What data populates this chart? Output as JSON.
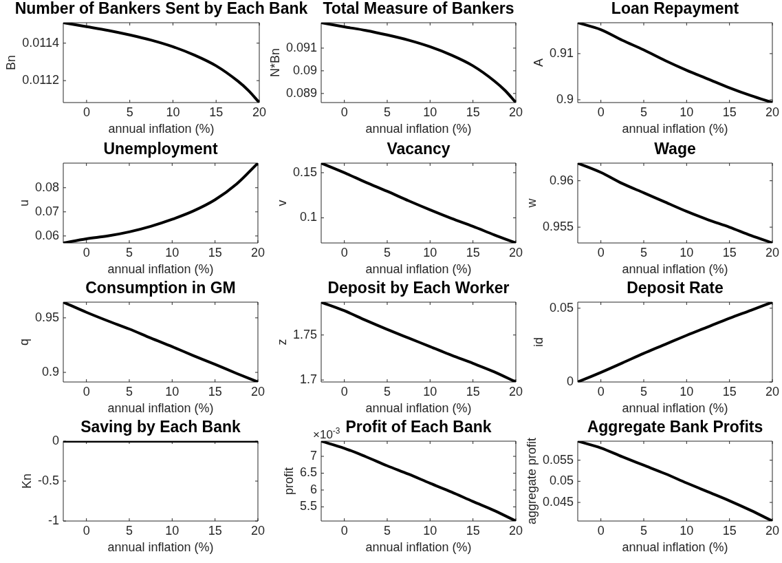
{
  "chart_data": [
    {
      "type": "line",
      "title": "Number of Bankers Sent by Each Bank",
      "xlabel": "annual inflation (%)",
      "ylabel": "Bn",
      "x": [
        -2.7,
        0,
        2.5,
        5,
        7.5,
        10,
        12.5,
        15,
        17.5,
        18.75,
        20
      ],
      "values": [
        0.011509,
        0.011488,
        0.011468,
        0.011444,
        0.011416,
        0.011381,
        0.011336,
        0.011279,
        0.011198,
        0.011147,
        0.011083
      ],
      "color": "#000000",
      "xlim": [
        -2.7,
        20
      ],
      "xticks": [
        0,
        5,
        10,
        15,
        20
      ],
      "ylim": [
        0.011083,
        0.011509
      ],
      "yticks": [
        0.0112,
        0.0114
      ]
    },
    {
      "type": "line",
      "title": "Total Measure of Bankers",
      "xlabel": "annual inflation (%)",
      "ylabel": "N*Bn",
      "x": [
        -2.7,
        0,
        2.5,
        5,
        7.5,
        10,
        12.5,
        15,
        17.5,
        18.75,
        20
      ],
      "values": [
        0.09212,
        0.09194,
        0.09178,
        0.09158,
        0.09135,
        0.09106,
        0.09069,
        0.09022,
        0.08955,
        0.08913,
        0.0886
      ],
      "color": "#000000",
      "xlim": [
        -2.7,
        20
      ],
      "xticks": [
        0,
        5,
        10,
        15,
        20
      ],
      "ylim": [
        0.0886,
        0.09212
      ],
      "yticks": [
        0.089,
        0.09,
        0.091
      ]
    },
    {
      "type": "line",
      "title": "Loan Repayment",
      "xlabel": "annual inflation (%)",
      "ylabel": "A",
      "x": [
        -2.7,
        0,
        2.5,
        5,
        7.5,
        10,
        12.5,
        15,
        17.5,
        20
      ],
      "values": [
        0.9167,
        0.9152,
        0.9129,
        0.9108,
        0.9085,
        0.9064,
        0.9045,
        0.9026,
        0.9009,
        0.8994
      ],
      "color": "#000000",
      "xlim": [
        -2.7,
        20
      ],
      "xticks": [
        0,
        5,
        10,
        15,
        20
      ],
      "ylim": [
        0.8994,
        0.9167
      ],
      "yticks": [
        0.9,
        0.91
      ]
    },
    {
      "type": "line",
      "title": "Unemployment",
      "xlabel": "annual inflation (%)",
      "ylabel": "u",
      "x": [
        -2.7,
        0,
        2.5,
        5,
        7.5,
        10,
        12.5,
        15,
        17.5,
        20
      ],
      "values": [
        0.0571,
        0.0588,
        0.06,
        0.0617,
        0.064,
        0.0669,
        0.0704,
        0.075,
        0.0815,
        0.0902
      ],
      "color": "#000000",
      "xlim": [
        -2.7,
        20
      ],
      "xticks": [
        0,
        5,
        10,
        15,
        20
      ],
      "ylim": [
        0.0571,
        0.0902
      ],
      "yticks": [
        0.06,
        0.07,
        0.08
      ]
    },
    {
      "type": "line",
      "title": "Vacancy",
      "xlabel": "annual inflation (%)",
      "ylabel": "v",
      "x": [
        -2.7,
        0,
        2.5,
        5,
        7.5,
        10,
        12.5,
        15,
        17.5,
        20
      ],
      "values": [
        0.1606,
        0.15,
        0.1394,
        0.1294,
        0.1189,
        0.1089,
        0.0994,
        0.0906,
        0.0811,
        0.0722
      ],
      "color": "#000000",
      "xlim": [
        -2.7,
        20
      ],
      "xticks": [
        0,
        5,
        10,
        15,
        20
      ],
      "ylim": [
        0.0722,
        0.1606
      ],
      "yticks": [
        0.1,
        0.15
      ]
    },
    {
      "type": "line",
      "title": "Wage",
      "xlabel": "annual inflation (%)",
      "ylabel": "w",
      "x": [
        -2.7,
        0,
        2.5,
        5,
        7.5,
        10,
        12.5,
        15,
        17.5,
        20
      ],
      "values": [
        0.9619,
        0.9609,
        0.9597,
        0.9587,
        0.9577,
        0.9567,
        0.9558,
        0.955,
        0.9541,
        0.9533
      ],
      "color": "#000000",
      "xlim": [
        -2.7,
        20
      ],
      "xticks": [
        0,
        5,
        10,
        15,
        20
      ],
      "ylim": [
        0.9533,
        0.9619
      ],
      "yticks": [
        0.955,
        0.96
      ]
    },
    {
      "type": "line",
      "title": "Consumption in GM",
      "xlabel": "annual inflation (%)",
      "ylabel": "q",
      "x": [
        -2.7,
        0,
        2.5,
        5,
        7.5,
        10,
        12.5,
        15,
        17.5,
        20
      ],
      "values": [
        0.9644,
        0.9551,
        0.9472,
        0.9398,
        0.9315,
        0.9236,
        0.9153,
        0.9074,
        0.8991,
        0.8912
      ],
      "color": "#000000",
      "xlim": [
        -2.7,
        20
      ],
      "xticks": [
        0,
        5,
        10,
        15,
        20
      ],
      "ylim": [
        0.8912,
        0.9644
      ],
      "yticks": [
        0.9,
        0.95
      ]
    },
    {
      "type": "line",
      "title": "Deposit by Each Worker",
      "xlabel": "annual inflation (%)",
      "ylabel": "z",
      "x": [
        -2.7,
        0,
        2.5,
        5,
        7.5,
        10,
        12.5,
        15,
        17.5,
        20
      ],
      "values": [
        1.7865,
        1.777,
        1.7663,
        1.7562,
        1.7466,
        1.7371,
        1.7275,
        1.7185,
        1.709,
        1.6978
      ],
      "color": "#000000",
      "xlim": [
        -2.7,
        20
      ],
      "xticks": [
        0,
        5,
        10,
        15,
        20
      ],
      "ylim": [
        1.6978,
        1.7865
      ],
      "yticks": [
        1.7,
        1.75
      ]
    },
    {
      "type": "line",
      "title": "Deposit Rate",
      "xlabel": "annual inflation (%)",
      "ylabel": "id",
      "x": [
        -2.7,
        0,
        2.5,
        5,
        7.5,
        10,
        12.5,
        15,
        17.5,
        20
      ],
      "values": [
        0,
        0.0065,
        0.0129,
        0.0194,
        0.0255,
        0.0316,
        0.0374,
        0.0432,
        0.0486,
        0.0541
      ],
      "color": "#000000",
      "xlim": [
        -2.7,
        20
      ],
      "xticks": [
        0,
        5,
        10,
        15,
        20
      ],
      "ylim": [
        0,
        0.0541
      ],
      "yticks": [
        0,
        0.05
      ]
    },
    {
      "type": "line",
      "title": "Saving by Each Bank",
      "xlabel": "annual inflation (%)",
      "ylabel": "Kn",
      "x": [
        -2.7,
        0,
        2.5,
        5,
        7.5,
        10,
        12.5,
        15,
        17.5,
        20
      ],
      "values": [
        0,
        0,
        0,
        0,
        0,
        0,
        0,
        0,
        0,
        0
      ],
      "color": "#000000",
      "xlim": [
        -2.7,
        20
      ],
      "xticks": [
        0,
        5,
        10,
        15,
        20
      ],
      "ylim": [
        -1,
        0
      ],
      "yticks": [
        -1,
        -0.5,
        0
      ]
    },
    {
      "type": "line",
      "title": "Profit of Each Bank",
      "xlabel": "annual inflation (%)",
      "ylabel": "profit",
      "x": [
        -2.7,
        0,
        2.5,
        5,
        7.5,
        10,
        12.5,
        15,
        17.5,
        20
      ],
      "values": [
        7.45,
        7.24,
        6.99,
        6.72,
        6.47,
        6.2,
        5.94,
        5.66,
        5.39,
        5.08
      ],
      "color": "#000000",
      "xlim": [
        -2.7,
        20
      ],
      "xticks": [
        0,
        5,
        10,
        15,
        20
      ],
      "ylim": [
        5.08,
        7.45
      ],
      "yticks": [
        5.5,
        6,
        6.5,
        7
      ],
      "annotations": [
        "×10$^{-3}$"
      ]
    },
    {
      "type": "line",
      "title": "Aggregate Bank Profits",
      "xlabel": "annual inflation (%)",
      "ylabel": "aggregate profit",
      "x": [
        -2.7,
        0,
        2.5,
        5,
        7.5,
        10,
        12.5,
        15,
        17.5,
        20
      ],
      "values": [
        0.0595,
        0.0579,
        0.0558,
        0.0538,
        0.0518,
        0.0496,
        0.0475,
        0.0454,
        0.0431,
        0.0406
      ],
      "color": "#000000",
      "xlim": [
        -2.7,
        20
      ],
      "xticks": [
        0,
        5,
        10,
        15,
        20
      ],
      "ylim": [
        0.0406,
        0.0595
      ],
      "yticks": [
        0.045,
        0.05,
        0.055
      ]
    }
  ]
}
